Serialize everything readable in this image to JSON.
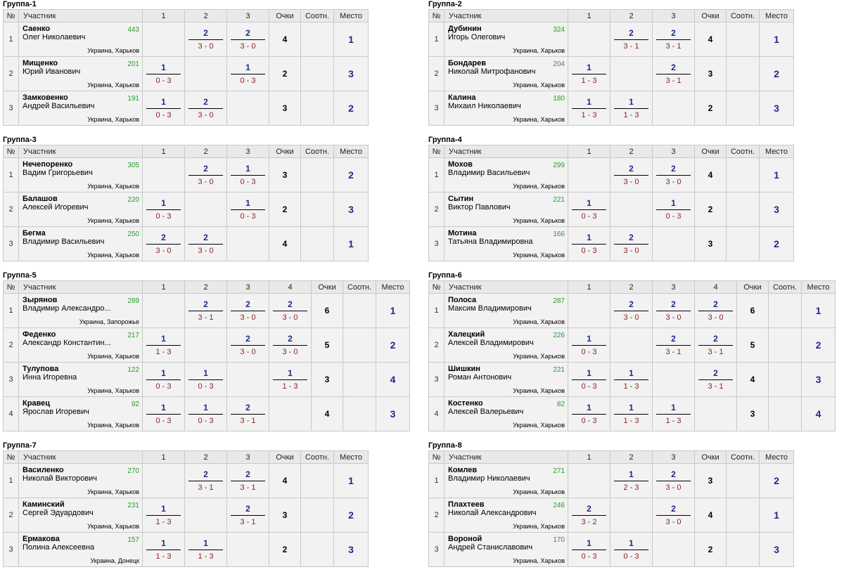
{
  "headers": {
    "num": "№",
    "participant": "Участник",
    "points": "Очки",
    "ratio": "Соотн.",
    "place": "Место"
  },
  "groups": [
    {
      "title": "Группа-1",
      "rows": [
        {
          "num": "1",
          "name": "Саенко",
          "full": "Олег Николаевич",
          "rating": "443",
          "loc": "Украина, Харьков",
          "scores": [
            null,
            {
              "w": "2",
              "r": "3 - 0"
            },
            {
              "w": "2",
              "r": "3 - 0"
            }
          ],
          "points": "4",
          "ratio": "",
          "place": "1"
        },
        {
          "num": "2",
          "name": "Мищенко",
          "full": "Юрий Иванович",
          "rating": "201",
          "loc": "Украина, Харьков",
          "scores": [
            {
              "w": "1",
              "r": "0 - 3"
            },
            null,
            {
              "w": "1",
              "r": "0 - 3"
            }
          ],
          "points": "2",
          "ratio": "",
          "place": "3"
        },
        {
          "num": "3",
          "name": "Замковенко",
          "full": "Андрей Васильевич",
          "rating": "191",
          "loc": "Украина, Харьков",
          "scores": [
            {
              "w": "1",
              "r": "0 - 3"
            },
            {
              "w": "2",
              "r": "3 - 0"
            },
            null
          ],
          "points": "3",
          "ratio": "",
          "place": "2"
        }
      ]
    },
    {
      "title": "Группа-2",
      "rows": [
        {
          "num": "1",
          "name": "Дубинин",
          "full": "Игорь Олегович",
          "rating": "324",
          "loc": "Украина, Харьков",
          "scores": [
            null,
            {
              "w": "2",
              "r": "3 - 1"
            },
            {
              "w": "2",
              "r": "3 - 1"
            }
          ],
          "points": "4",
          "ratio": "",
          "place": "1"
        },
        {
          "num": "2",
          "name": "Бондарев",
          "full": "Николай Митрофанович",
          "rating": "204",
          "loc": "Украина, Харьков",
          "scores": [
            {
              "w": "1",
              "r": "1 - 3"
            },
            null,
            {
              "w": "2",
              "r": "3 - 1"
            }
          ],
          "points": "3",
          "ratio": "",
          "place": "2"
        },
        {
          "num": "3",
          "name": "Калина",
          "full": "Михаил Николаевич",
          "rating": "180",
          "loc": "Украина, Харьков",
          "scores": [
            {
              "w": "1",
              "r": "1 - 3"
            },
            {
              "w": "1",
              "r": "1 - 3"
            },
            null
          ],
          "points": "2",
          "ratio": "",
          "place": "3"
        }
      ]
    },
    {
      "title": "Группа-3",
      "rows": [
        {
          "num": "1",
          "name": "Нечепоренко",
          "full": "Вадим Григорьевич",
          "rating": "305",
          "loc": "Украина, Харьков",
          "scores": [
            null,
            {
              "w": "2",
              "r": "3 - 0"
            },
            {
              "w": "1",
              "r": "0 - 3"
            }
          ],
          "points": "3",
          "ratio": "",
          "place": "2"
        },
        {
          "num": "2",
          "name": "Балашов",
          "full": "Алексей Игоревич",
          "rating": "220",
          "loc": "Украина, Харьков",
          "scores": [
            {
              "w": "1",
              "r": "0 - 3"
            },
            null,
            {
              "w": "1",
              "r": "0 - 3"
            }
          ],
          "points": "2",
          "ratio": "",
          "place": "3"
        },
        {
          "num": "3",
          "name": "Бегма",
          "full": "Владимир Васильевич",
          "rating": "250",
          "loc": "Украина, Харьков",
          "scores": [
            {
              "w": "2",
              "r": "3 - 0"
            },
            {
              "w": "2",
              "r": "3 - 0"
            },
            null
          ],
          "points": "4",
          "ratio": "",
          "place": "1"
        }
      ]
    },
    {
      "title": "Группа-4",
      "rows": [
        {
          "num": "1",
          "name": "Мохов",
          "full": "Владимир Васильевич",
          "rating": "299",
          "loc": "Украина, Харьков",
          "scores": [
            null,
            {
              "w": "2",
              "r": "3 - 0"
            },
            {
              "w": "2",
              "r": "3 - 0"
            }
          ],
          "points": "4",
          "ratio": "",
          "place": "1"
        },
        {
          "num": "2",
          "name": "Сытин",
          "full": "Виктор Павлович",
          "rating": "221",
          "loc": "Украина, Харьков",
          "scores": [
            {
              "w": "1",
              "r": "0 - 3"
            },
            null,
            {
              "w": "1",
              "r": "0 - 3"
            }
          ],
          "points": "2",
          "ratio": "",
          "place": "3"
        },
        {
          "num": "3",
          "name": "Мотина",
          "full": "Татьяна Владимировна",
          "rating": "166",
          "loc": "Украина, Харьков",
          "scores": [
            {
              "w": "1",
              "r": "0 - 3"
            },
            {
              "w": "2",
              "r": "3 - 0"
            },
            null
          ],
          "points": "3",
          "ratio": "",
          "place": "2"
        }
      ]
    },
    {
      "title": "Группа-5",
      "rows": [
        {
          "num": "1",
          "name": "Зырянов",
          "full": "Владимир Александро...",
          "rating": "289",
          "loc": "Украина, Запорожье",
          "scores": [
            null,
            {
              "w": "2",
              "r": "3 - 1"
            },
            {
              "w": "2",
              "r": "3 - 0"
            },
            {
              "w": "2",
              "r": "3 - 0"
            }
          ],
          "points": "6",
          "ratio": "",
          "place": "1"
        },
        {
          "num": "2",
          "name": "Феденко",
          "full": "Александр Константин...",
          "rating": "217",
          "loc": "Украина, Харьков",
          "scores": [
            {
              "w": "1",
              "r": "1 - 3"
            },
            null,
            {
              "w": "2",
              "r": "3 - 0"
            },
            {
              "w": "2",
              "r": "3 - 0"
            }
          ],
          "points": "5",
          "ratio": "",
          "place": "2"
        },
        {
          "num": "3",
          "name": "Тулупова",
          "full": "Инна Игоревна",
          "rating": "122",
          "loc": "Украина, Харьков",
          "scores": [
            {
              "w": "1",
              "r": "0 - 3"
            },
            {
              "w": "1",
              "r": "0 - 3"
            },
            null,
            {
              "w": "1",
              "r": "1 - 3"
            }
          ],
          "points": "3",
          "ratio": "",
          "place": "4"
        },
        {
          "num": "4",
          "name": "Кравец",
          "full": "Ярослав Игоревич",
          "rating": "92",
          "loc": "Украина, Харьков",
          "scores": [
            {
              "w": "1",
              "r": "0 - 3"
            },
            {
              "w": "1",
              "r": "0 - 3"
            },
            {
              "w": "2",
              "r": "3 - 1"
            },
            null
          ],
          "points": "4",
          "ratio": "",
          "place": "3"
        }
      ]
    },
    {
      "title": "Группа-6",
      "rows": [
        {
          "num": "1",
          "name": "Полоса",
          "full": "Максим Владимирович",
          "rating": "287",
          "loc": "Украина, Харьков",
          "scores": [
            null,
            {
              "w": "2",
              "r": "3 - 0"
            },
            {
              "w": "2",
              "r": "3 - 0"
            },
            {
              "w": "2",
              "r": "3 - 0"
            }
          ],
          "points": "6",
          "ratio": "",
          "place": "1"
        },
        {
          "num": "2",
          "name": "Халецкий",
          "full": "Алексей Владимирович",
          "rating": "226",
          "loc": "Украина, Харьков",
          "scores": [
            {
              "w": "1",
              "r": "0 - 3"
            },
            null,
            {
              "w": "2",
              "r": "3 - 1"
            },
            {
              "w": "2",
              "r": "3 - 1"
            }
          ],
          "points": "5",
          "ratio": "",
          "place": "2"
        },
        {
          "num": "3",
          "name": "Шишкин",
          "full": "Роман Антонович",
          "rating": "221",
          "loc": "Украина, Харьков",
          "scores": [
            {
              "w": "1",
              "r": "0 - 3"
            },
            {
              "w": "1",
              "r": "1 - 3"
            },
            null,
            {
              "w": "2",
              "r": "3 - 1"
            }
          ],
          "points": "4",
          "ratio": "",
          "place": "3"
        },
        {
          "num": "4",
          "name": "Костенко",
          "full": "Алексей Валерьевич",
          "rating": "82",
          "loc": "Украина, Харьков",
          "scores": [
            {
              "w": "1",
              "r": "0 - 3"
            },
            {
              "w": "1",
              "r": "1 - 3"
            },
            {
              "w": "1",
              "r": "1 - 3"
            },
            null
          ],
          "points": "3",
          "ratio": "",
          "place": "4"
        }
      ]
    },
    {
      "title": "Группа-7",
      "rows": [
        {
          "num": "1",
          "name": "Василенко",
          "full": "Николай Викторович",
          "rating": "270",
          "loc": "Украина, Харьков",
          "scores": [
            null,
            {
              "w": "2",
              "r": "3 - 1"
            },
            {
              "w": "2",
              "r": "3 - 1"
            }
          ],
          "points": "4",
          "ratio": "",
          "place": "1"
        },
        {
          "num": "2",
          "name": "Каминский",
          "full": "Сергей Эдуардович",
          "rating": "231",
          "loc": "Украина, Харьков",
          "scores": [
            {
              "w": "1",
              "r": "1 - 3"
            },
            null,
            {
              "w": "2",
              "r": "3 - 1"
            }
          ],
          "points": "3",
          "ratio": "",
          "place": "2"
        },
        {
          "num": "3",
          "name": "Ермакова",
          "full": "Полина Алексеевна",
          "rating": "157",
          "loc": "Украина, Донецк",
          "scores": [
            {
              "w": "1",
              "r": "1 - 3"
            },
            {
              "w": "1",
              "r": "1 - 3"
            },
            null
          ],
          "points": "2",
          "ratio": "",
          "place": "3"
        }
      ]
    },
    {
      "title": "Группа-8",
      "rows": [
        {
          "num": "1",
          "name": "Комлев",
          "full": "Владимир Николаевич",
          "rating": "271",
          "loc": "Украина, Харьков",
          "scores": [
            null,
            {
              "w": "1",
              "r": "2 - 3"
            },
            {
              "w": "2",
              "r": "3 - 0"
            }
          ],
          "points": "3",
          "ratio": "",
          "place": "2"
        },
        {
          "num": "2",
          "name": "Плахтеев",
          "full": "Николай Александрович",
          "rating": "246",
          "loc": "Украина, Харьков",
          "scores": [
            {
              "w": "2",
              "r": "3 - 2"
            },
            null,
            {
              "w": "2",
              "r": "3 - 0"
            }
          ],
          "points": "4",
          "ratio": "",
          "place": "1"
        },
        {
          "num": "3",
          "name": "Вороной",
          "full": "Андрей Станиславович",
          "rating": "170",
          "loc": "Украина, Харьков",
          "scores": [
            {
              "w": "1",
              "r": "0 - 3"
            },
            {
              "w": "1",
              "r": "0 - 3"
            },
            null
          ],
          "points": "2",
          "ratio": "",
          "place": "3"
        }
      ]
    }
  ]
}
